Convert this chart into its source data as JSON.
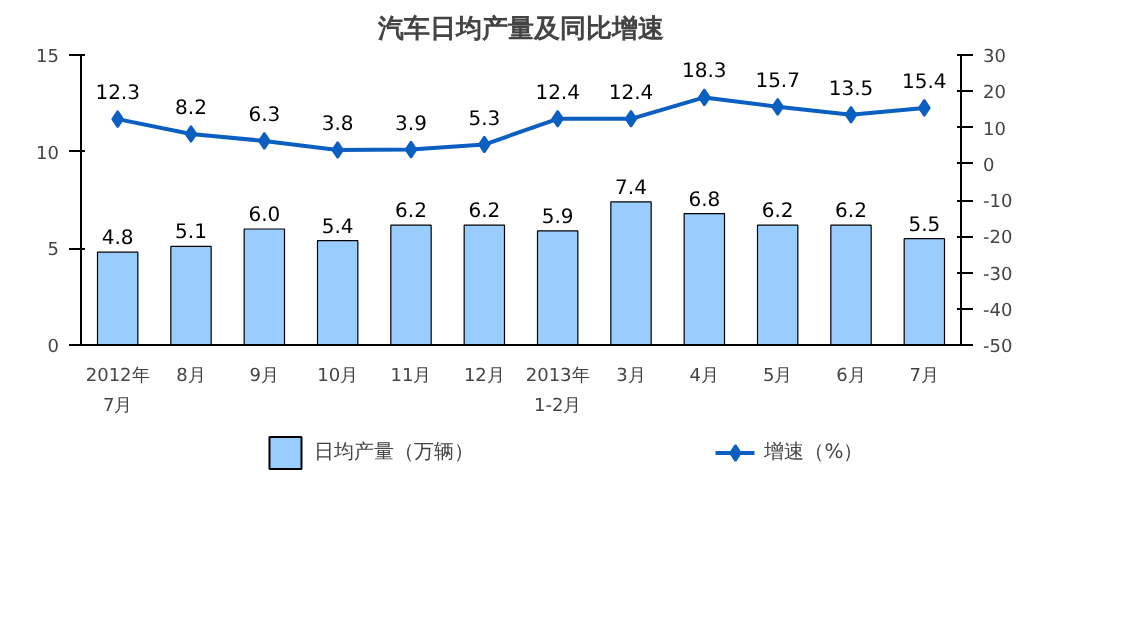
{
  "chart_data": {
    "type": "bar",
    "title": "汽车日均产量及同比增速",
    "categories": [
      "2012年\n7月",
      "8月",
      "9月",
      "10月",
      "11月",
      "12月",
      "2013年\n1-2月",
      "3月",
      "4月",
      "5月",
      "6月",
      "7月"
    ],
    "series": [
      {
        "name": "日均产量（万辆）",
        "color": "#99ccff",
        "values": [
          4.8,
          5.1,
          6.0,
          5.4,
          6.2,
          6.2,
          5.9,
          7.4,
          6.8,
          6.2,
          6.2,
          5.5
        ],
        "value_labels": [
          "4.8",
          "5.1",
          "6.0",
          "5.4",
          "6.2",
          "6.2",
          "5.9",
          "7.4",
          "6.8",
          "6.2",
          "6.2",
          "5.5"
        ]
      },
      {
        "name": "增速（%）",
        "type": "line",
        "axis": "y2",
        "color": "#0b5fc0",
        "marker": "diamond",
        "values": [
          12.3,
          8.2,
          6.3,
          3.8,
          3.9,
          5.3,
          12.4,
          12.4,
          18.3,
          15.7,
          13.5,
          15.4
        ]
      }
    ],
    "ylim": [
      0,
      15
    ],
    "yticks": [
      0,
      5,
      10,
      15
    ],
    "y2lim": [
      -50,
      30
    ],
    "y2ticks": [
      -50,
      -40,
      -30,
      -20,
      -10,
      0,
      10,
      20,
      30
    ],
    "data_labels": true,
    "grid": false,
    "legend": "bottom"
  }
}
